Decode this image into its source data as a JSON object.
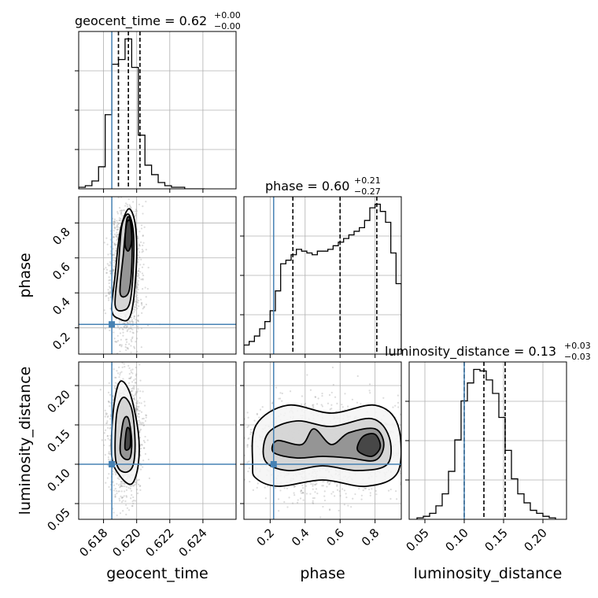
{
  "colors": {
    "truth": "#4682b4",
    "hist": "#000000",
    "contour": "#000000",
    "samples": "#9a9a9a",
    "grid": "#b0b0b0"
  },
  "chart_data": {
    "type": "corner",
    "parameters": [
      "geocent_time",
      "phase",
      "luminosity_distance"
    ],
    "truths": {
      "geocent_time": 0.6185,
      "phase": 0.22,
      "luminosity_distance": 0.1
    },
    "titles": [
      {
        "param": "geocent_time",
        "text": "geocent_time = 0.62",
        "sup": "+0.00",
        "sub": "−0.00"
      },
      {
        "param": "phase",
        "text": "phase = 0.60",
        "sup": "+0.21",
        "sub": "−0.27"
      },
      {
        "param": "luminosity_distance",
        "text": "luminosity_distance = 0.13",
        "sup": "+0.03",
        "sub": "−0.03"
      }
    ],
    "axes": {
      "geocent_time": {
        "range": [
          0.6165,
          0.626
        ],
        "ticks": [
          0.618,
          0.62,
          0.622,
          0.624
        ],
        "tick_labels": [
          "0.618",
          "0.620",
          "0.622",
          "0.624"
        ]
      },
      "phase": {
        "range": [
          0.05,
          0.95
        ],
        "ticks": [
          0.2,
          0.4,
          0.6,
          0.8
        ],
        "tick_labels": [
          "0.2",
          "0.4",
          "0.6",
          "0.8"
        ]
      },
      "luminosity_distance": {
        "range": [
          0.03,
          0.23
        ],
        "ticks": [
          0.05,
          0.1,
          0.15,
          0.2
        ],
        "tick_labels": [
          "0.05",
          "0.10",
          "0.15",
          "0.20"
        ]
      }
    },
    "marginals": {
      "geocent_time": {
        "edges": [
          0.6165,
          0.6169,
          0.6173,
          0.6177,
          0.6181,
          0.6185,
          0.6189,
          0.6193,
          0.6197,
          0.6201,
          0.6205,
          0.6209,
          0.6213,
          0.6217,
          0.6221,
          0.6225,
          0.6229,
          0.6233,
          0.6237,
          0.6241
        ],
        "counts": [
          1,
          2,
          5,
          14,
          47,
          79,
          82,
          95,
          77,
          34,
          15,
          9,
          4,
          2,
          1,
          1,
          0,
          0,
          0
        ],
        "quantiles": [
          0.6189,
          0.6195,
          0.6202
        ]
      },
      "phase": {
        "edges": [
          0.05,
          0.08,
          0.11,
          0.14,
          0.17,
          0.2,
          0.23,
          0.26,
          0.29,
          0.32,
          0.35,
          0.38,
          0.41,
          0.44,
          0.47,
          0.5,
          0.53,
          0.56,
          0.59,
          0.62,
          0.65,
          0.68,
          0.71,
          0.74,
          0.77,
          0.8,
          0.83,
          0.86,
          0.89,
          0.92,
          0.95
        ],
        "counts": [
          5,
          7,
          10,
          14,
          18,
          24,
          35,
          50,
          52,
          55,
          58,
          57,
          56,
          55,
          57,
          57,
          58,
          60,
          62,
          64,
          66,
          68,
          70,
          74,
          81,
          83,
          79,
          73,
          56,
          39
        ],
        "quantiles": [
          0.33,
          0.6,
          0.81
        ]
      },
      "luminosity_distance": {
        "edges": [
          0.04,
          0.048,
          0.056,
          0.064,
          0.072,
          0.08,
          0.088,
          0.096,
          0.104,
          0.112,
          0.12,
          0.128,
          0.136,
          0.144,
          0.152,
          0.16,
          0.168,
          0.176,
          0.184,
          0.192,
          0.2,
          0.208,
          0.216
        ],
        "counts": [
          1,
          2,
          4,
          9,
          17,
          32,
          53,
          79,
          91,
          100,
          99,
          93,
          84,
          68,
          46,
          27,
          17,
          11,
          6,
          4,
          2,
          1
        ],
        "quantiles": [
          0.1,
          0.125,
          0.152
        ]
      }
    },
    "joint": [
      {
        "x": "geocent_time",
        "y": "phase",
        "contours": [
          [
            [
              0.6185,
              0.3
            ],
            [
              0.6187,
              0.5
            ],
            [
              0.619,
              0.75
            ],
            [
              0.6195,
              0.88
            ],
            [
              0.6199,
              0.8
            ],
            [
              0.62,
              0.6
            ],
            [
              0.6198,
              0.35
            ],
            [
              0.6195,
              0.25
            ],
            [
              0.619,
              0.25
            ]
          ],
          [
            [
              0.6187,
              0.33
            ],
            [
              0.6189,
              0.55
            ],
            [
              0.6191,
              0.78
            ],
            [
              0.6195,
              0.85
            ],
            [
              0.6198,
              0.75
            ],
            [
              0.6198,
              0.55
            ],
            [
              0.6196,
              0.35
            ],
            [
              0.6192,
              0.3
            ]
          ],
          [
            [
              0.619,
              0.4
            ],
            [
              0.6192,
              0.62
            ],
            [
              0.6194,
              0.8
            ],
            [
              0.6197,
              0.78
            ],
            [
              0.6197,
              0.55
            ],
            [
              0.6195,
              0.4
            ]
          ],
          [
            [
              0.6193,
              0.68
            ],
            [
              0.6194,
              0.82
            ],
            [
              0.6196,
              0.82
            ],
            [
              0.6197,
              0.7
            ],
            [
              0.6195,
              0.64
            ]
          ]
        ]
      },
      {
        "x": "geocent_time",
        "y": "luminosity_distance",
        "contours": [
          [
            [
              0.6185,
              0.11
            ],
            [
              0.6186,
              0.17
            ],
            [
              0.619,
              0.205
            ],
            [
              0.6196,
              0.19
            ],
            [
              0.6201,
              0.14
            ],
            [
              0.6201,
              0.1
            ],
            [
              0.6197,
              0.075
            ],
            [
              0.619,
              0.085
            ]
          ],
          [
            [
              0.6187,
              0.115
            ],
            [
              0.6188,
              0.165
            ],
            [
              0.6192,
              0.185
            ],
            [
              0.6197,
              0.17
            ],
            [
              0.6199,
              0.13
            ],
            [
              0.6198,
              0.1
            ],
            [
              0.6194,
              0.09
            ],
            [
              0.6189,
              0.095
            ]
          ],
          [
            [
              0.619,
              0.12
            ],
            [
              0.6192,
              0.155
            ],
            [
              0.6195,
              0.158
            ],
            [
              0.6197,
              0.13
            ],
            [
              0.6196,
              0.108
            ],
            [
              0.6192,
              0.108
            ]
          ],
          [
            [
              0.6193,
              0.12
            ],
            [
              0.6194,
              0.145
            ],
            [
              0.6196,
              0.142
            ],
            [
              0.6196,
              0.122
            ]
          ]
        ]
      },
      {
        "x": "phase",
        "y": "luminosity_distance",
        "contours": [
          [
            [
              0.1,
              0.1
            ],
            [
              0.12,
              0.15
            ],
            [
              0.3,
              0.175
            ],
            [
              0.55,
              0.165
            ],
            [
              0.8,
              0.175
            ],
            [
              0.93,
              0.15
            ],
            [
              0.93,
              0.09
            ],
            [
              0.75,
              0.072
            ],
            [
              0.5,
              0.08
            ],
            [
              0.25,
              0.072
            ],
            [
              0.12,
              0.082
            ]
          ],
          [
            [
              0.17,
              0.105
            ],
            [
              0.19,
              0.14
            ],
            [
              0.35,
              0.155
            ],
            [
              0.55,
              0.148
            ],
            [
              0.78,
              0.158
            ],
            [
              0.88,
              0.135
            ],
            [
              0.87,
              0.1
            ],
            [
              0.7,
              0.092
            ],
            [
              0.5,
              0.098
            ],
            [
              0.3,
              0.092
            ]
          ],
          [
            [
              0.22,
              0.115
            ],
            [
              0.24,
              0.13
            ],
            [
              0.38,
              0.125
            ],
            [
              0.45,
              0.145
            ],
            [
              0.55,
              0.125
            ],
            [
              0.65,
              0.14
            ],
            [
              0.8,
              0.145
            ],
            [
              0.85,
              0.125
            ],
            [
              0.8,
              0.105
            ],
            [
              0.65,
              0.108
            ],
            [
              0.5,
              0.11
            ],
            [
              0.35,
              0.108
            ]
          ],
          [
            [
              0.7,
              0.118
            ],
            [
              0.73,
              0.135
            ],
            [
              0.8,
              0.138
            ],
            [
              0.83,
              0.122
            ],
            [
              0.78,
              0.11
            ]
          ]
        ]
      }
    ]
  }
}
